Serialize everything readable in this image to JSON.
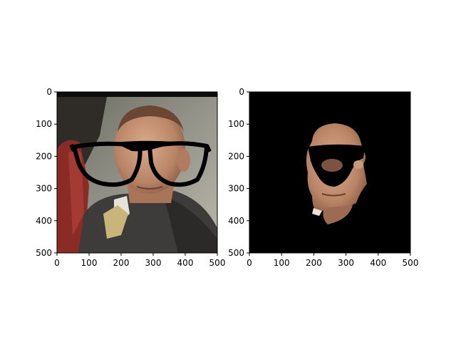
{
  "figure": {
    "panels": [
      {
        "name": "left",
        "content": "face-with-glasses",
        "xticks": [
          "0",
          "100",
          "200",
          "300",
          "400",
          "500"
        ],
        "yticks": [
          "0",
          "100",
          "200",
          "300",
          "400",
          "500"
        ],
        "xlim": [
          0,
          500
        ],
        "ylim": [
          500,
          0
        ]
      },
      {
        "name": "right",
        "content": "masked-face-on-black",
        "xticks": [
          "0",
          "100",
          "200",
          "300",
          "400",
          "500"
        ],
        "yticks": [
          "0",
          "100",
          "200",
          "300",
          "400",
          "500"
        ],
        "xlim": [
          0,
          500
        ],
        "ylim": [
          500,
          0
        ]
      }
    ],
    "colors": {
      "background": "#ffffff",
      "mask_background": "#000000",
      "glasses": "#000000",
      "skin": "#c79a7a",
      "suit": "#3e3c3a",
      "chair_red": "#8b2b26"
    }
  }
}
